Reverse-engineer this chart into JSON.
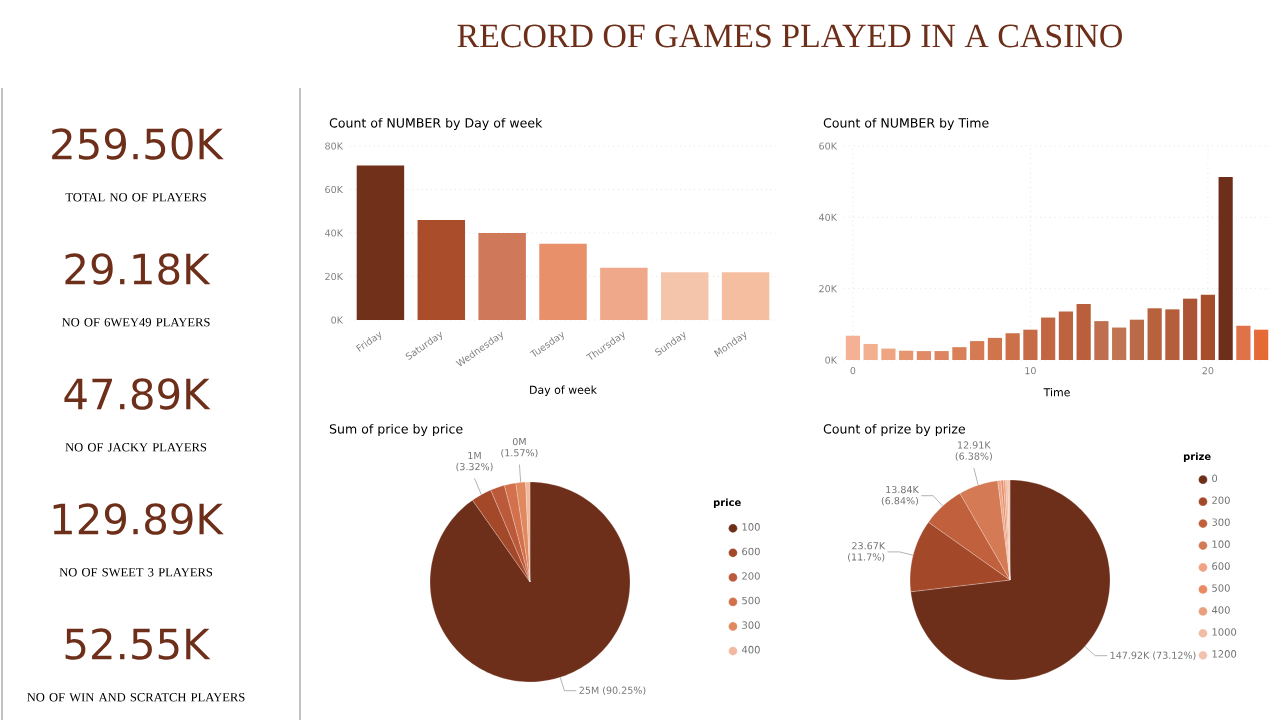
{
  "chart_data": [
    {
      "type": "other",
      "title": "RECORD OF GAMES PLAYED IN A CASINO",
      "annotations": [
        "259.50K",
        "TOTAL NO OF PLAYERS",
        "29.18K",
        "NO OF 6WEY49 PLAYERS",
        "47.89K",
        "NO OF JACKY PLAYERS",
        "129.89K",
        "NO OF SWEET 3 PLAYERS",
        "52.55K",
        "NO OF WIN AND SCRATCH PLAYERS"
      ]
    },
    {
      "type": "bar",
      "title": "Count of NUMBER by Day of week",
      "xlabel": "Day of week",
      "categories": [
        "Friday",
        "Saturday",
        "Wednesday",
        "Tuesday",
        "Thursday",
        "Sunday",
        "Monday"
      ],
      "values": [
        71000,
        46000,
        40000,
        35000,
        24000,
        22000,
        22000
      ],
      "colors": [
        "#71301a",
        "#a94d2a",
        "#d0785a",
        "#e8906a",
        "#efa88a",
        "#f4c5ab",
        "#f6bea1"
      ],
      "ylim": [
        0,
        80000
      ],
      "yticks": [
        {
          "value": 0,
          "label": "0K"
        },
        {
          "value": 20000,
          "label": "20K"
        },
        {
          "value": 40000,
          "label": "40K"
        },
        {
          "value": 60000,
          "label": "60K"
        },
        {
          "value": 80000,
          "label": "80K"
        }
      ],
      "grid": "y"
    },
    {
      "type": "bar",
      "title": "Count of NUMBER by Time",
      "xlabel": "Time",
      "x": [
        0,
        1,
        2,
        3,
        4,
        5,
        6,
        7,
        8,
        9,
        10,
        11,
        12,
        13,
        14,
        15,
        16,
        17,
        18,
        19,
        20,
        21,
        22,
        23
      ],
      "values": [
        6800,
        4500,
        3200,
        2600,
        2500,
        2500,
        3600,
        5300,
        6200,
        7500,
        8500,
        11900,
        13600,
        15700,
        10900,
        9100,
        11300,
        14500,
        14200,
        17200,
        18300,
        51300,
        9600,
        8500
      ],
      "colors": [
        "#f4b194",
        "#f2b08f",
        "#efa582",
        "#e59570",
        "#e08a66",
        "#dd8560",
        "#d98058",
        "#d57a52",
        "#d0744c",
        "#cb7048",
        "#c66b45",
        "#c26641",
        "#be633f",
        "#ba5f3b",
        "#be6f4f",
        "#c07451",
        "#bb6a47",
        "#b7613d",
        "#b45e3b",
        "#ac5535",
        "#a64d2c",
        "#6e2f1a",
        "#e0724a",
        "#e66a36"
      ],
      "xlim": [
        -0.5,
        23.5
      ],
      "xticks": [
        0,
        10,
        20
      ],
      "ylim": [
        0,
        60000
      ],
      "yticks": [
        {
          "value": 0,
          "label": "0K"
        },
        {
          "value": 20000,
          "label": "20K"
        },
        {
          "value": 40000,
          "label": "40K"
        },
        {
          "value": 60000,
          "label": "60K"
        }
      ],
      "grid": true
    },
    {
      "type": "pie",
      "title": "Sum of price by price",
      "legend_title": "price",
      "legend": "right",
      "categories": [
        "100",
        "600",
        "200",
        "500",
        "300",
        "400"
      ],
      "values": [
        90.25,
        3.32,
        2.3,
        1.86,
        1.57,
        0.7
      ],
      "colors": [
        "#6e2f1a",
        "#a4482a",
        "#bb5a3a",
        "#d4714d",
        "#e0895f",
        "#f2b9a0"
      ],
      "value_labels": [
        "25M (90.25%)",
        "1M (3.32%)",
        null,
        null,
        "0M (1.57%)",
        null
      ]
    },
    {
      "type": "pie",
      "title": "Count of prize by prize",
      "legend_title": "prize",
      "legend": "right",
      "categories": [
        "0",
        "200",
        "300",
        "100",
        "600",
        "500",
        "400",
        "1000",
        "1200"
      ],
      "values": [
        73.12,
        11.7,
        6.84,
        6.38,
        0.5,
        0.4,
        0.36,
        0.36,
        0.34
      ],
      "colors": [
        "#6e2f1a",
        "#a4482a",
        "#c0603d",
        "#d47a55",
        "#eea385",
        "#e98a63",
        "#e8a07e",
        "#f0bca4",
        "#f2c2ae"
      ],
      "value_labels": [
        "147.92K (73.12%)",
        "23.67K (11.7%)",
        "13.84K (6.84%)",
        "12.91K (6.38%)",
        null,
        null,
        null,
        null,
        null
      ]
    }
  ]
}
